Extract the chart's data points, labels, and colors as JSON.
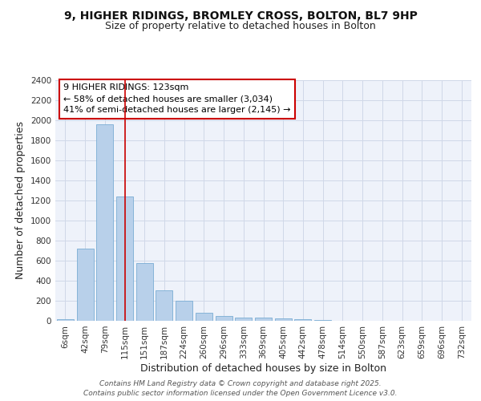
{
  "title": "9, HIGHER RIDINGS, BROMLEY CROSS, BOLTON, BL7 9HP",
  "subtitle": "Size of property relative to detached houses in Bolton",
  "xlabel": "Distribution of detached houses by size in Bolton",
  "ylabel": "Number of detached properties",
  "categories": [
    "6sqm",
    "42sqm",
    "79sqm",
    "115sqm",
    "151sqm",
    "187sqm",
    "224sqm",
    "260sqm",
    "296sqm",
    "333sqm",
    "369sqm",
    "405sqm",
    "442sqm",
    "478sqm",
    "514sqm",
    "550sqm",
    "587sqm",
    "623sqm",
    "659sqm",
    "696sqm",
    "732sqm"
  ],
  "values": [
    18,
    720,
    1960,
    1240,
    575,
    305,
    200,
    80,
    48,
    35,
    30,
    28,
    15,
    8,
    4,
    4,
    3,
    3,
    3,
    3,
    3
  ],
  "bar_color": "#b8d0ea",
  "bar_edge_color": "#7aadd4",
  "red_line_x": 3,
  "annotation_text": "9 HIGHER RIDINGS: 123sqm\n← 58% of detached houses are smaller (3,034)\n41% of semi-detached houses are larger (2,145) →",
  "annotation_box_color": "#ffffff",
  "annotation_box_edge": "#cc0000",
  "red_line_color": "#cc0000",
  "ylim": [
    0,
    2400
  ],
  "yticks": [
    0,
    200,
    400,
    600,
    800,
    1000,
    1200,
    1400,
    1600,
    1800,
    2000,
    2200,
    2400
  ],
  "grid_color": "#d0d8e8",
  "background_color": "#eef2fa",
  "footer": "Contains HM Land Registry data © Crown copyright and database right 2025.\nContains public sector information licensed under the Open Government Licence v3.0.",
  "title_fontsize": 10,
  "subtitle_fontsize": 9,
  "axis_label_fontsize": 9,
  "tick_fontsize": 7.5,
  "annotation_fontsize": 8,
  "footer_fontsize": 6.5
}
